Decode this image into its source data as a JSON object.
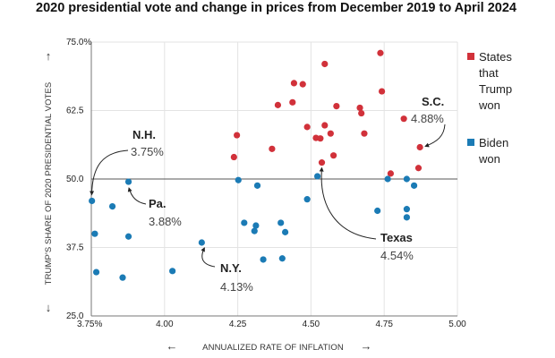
{
  "chart_data": {
    "type": "scatter",
    "title": "2020 presidential vote and change in prices from December 2019 to April 2024",
    "xlabel": "ANNUALIZED RATE OF INFLATION",
    "ylabel": "TRUMP'S SHARE OF 2020 PRESIDENTIAL VOTES",
    "xlim": [
      3.75,
      5.0
    ],
    "ylim": [
      25.0,
      75.0
    ],
    "x_ticks": [
      3.75,
      4.0,
      4.25,
      4.5,
      4.75,
      5.0
    ],
    "x_tick_labels": [
      "3.75%",
      "4.00",
      "4.25",
      "4.50",
      "4.75",
      "5.00"
    ],
    "y_ticks": [
      25.0,
      37.5,
      50.0,
      62.5,
      75.0
    ],
    "y_tick_labels": [
      "25.0",
      "37.5",
      "50.0",
      "62.5",
      "75.0%"
    ],
    "reference_line": 50.0,
    "legend": [
      {
        "name": "States that Trump won",
        "lines": [
          "States",
          "that",
          "Trump",
          "won"
        ],
        "color": "#d1313a"
      },
      {
        "name": "Biden won",
        "lines": [
          "Biden",
          "won"
        ],
        "color": "#1b7bb5"
      }
    ],
    "series": [
      {
        "name": "States that Trump won",
        "color": "#d1313a",
        "points": [
          [
            4.237,
            54.0
          ],
          [
            4.247,
            58.0
          ],
          [
            4.367,
            55.5
          ],
          [
            4.387,
            63.5
          ],
          [
            4.437,
            64.0
          ],
          [
            4.442,
            67.5
          ],
          [
            4.472,
            67.3
          ],
          [
            4.487,
            59.5
          ],
          [
            4.517,
            57.5
          ],
          [
            4.532,
            57.4
          ],
          [
            4.537,
            53.0
          ],
          [
            4.547,
            71.0
          ],
          [
            4.547,
            59.8
          ],
          [
            4.567,
            58.3
          ],
          [
            4.577,
            54.3
          ],
          [
            4.587,
            63.3
          ],
          [
            4.667,
            63.0
          ],
          [
            4.672,
            62.0
          ],
          [
            4.682,
            58.3
          ],
          [
            4.737,
            73.0
          ],
          [
            4.742,
            66.0
          ],
          [
            4.772,
            51.0
          ],
          [
            4.817,
            61.0
          ],
          [
            4.867,
            52.0
          ],
          [
            4.872,
            55.8
          ]
        ]
      },
      {
        "name": "Biden won",
        "color": "#1b7bb5",
        "points": [
          [
            3.752,
            46.0
          ],
          [
            3.762,
            40.0
          ],
          [
            3.767,
            33.0
          ],
          [
            3.822,
            45.0
          ],
          [
            3.857,
            32.0
          ],
          [
            3.877,
            49.5
          ],
          [
            3.877,
            39.5
          ],
          [
            4.027,
            33.2
          ],
          [
            4.127,
            38.4
          ],
          [
            4.252,
            49.8
          ],
          [
            4.272,
            42.0
          ],
          [
            4.307,
            40.5
          ],
          [
            4.312,
            41.5
          ],
          [
            4.317,
            48.8
          ],
          [
            4.337,
            35.3
          ],
          [
            4.397,
            42.0
          ],
          [
            4.402,
            35.5
          ],
          [
            4.412,
            40.3
          ],
          [
            4.487,
            46.3
          ],
          [
            4.522,
            50.5
          ],
          [
            4.762,
            50.0
          ],
          [
            4.727,
            44.2
          ],
          [
            4.827,
            50.0
          ],
          [
            4.827,
            44.5
          ],
          [
            4.827,
            43.0
          ],
          [
            4.852,
            48.8
          ]
        ]
      }
    ],
    "annotations": [
      {
        "label": "N.H.",
        "value": "3.75%"
      },
      {
        "label": "Pa.",
        "value": "3.88%"
      },
      {
        "label": "N.Y.",
        "value": "4.13%"
      },
      {
        "label": "Texas",
        "value": "4.54%"
      },
      {
        "label": "S.C.",
        "value": "4.88%"
      }
    ],
    "arrows": {
      "up": "↑",
      "down": "↓",
      "left": "←",
      "right": "→"
    }
  }
}
